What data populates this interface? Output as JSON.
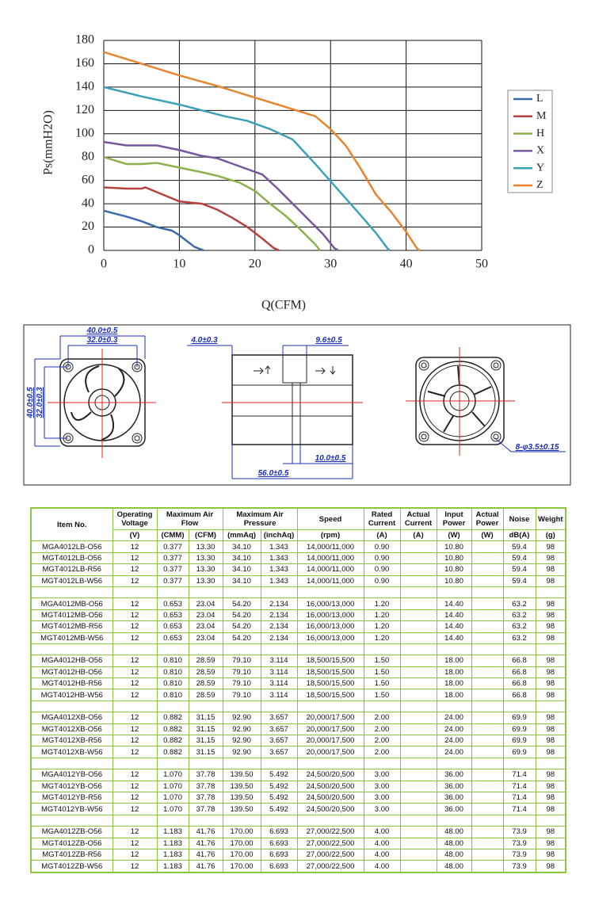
{
  "chart_data": {
    "type": "line",
    "xlabel": "Q(CFM)",
    "ylabel": "Ps(mmH2O)",
    "xlim": [
      0,
      50
    ],
    "ylim": [
      0,
      180
    ],
    "xticks": [
      0,
      10,
      20,
      30,
      40,
      50
    ],
    "yticks": [
      0,
      20,
      40,
      60,
      80,
      100,
      120,
      140,
      160,
      180
    ],
    "grid": true,
    "legend": "right",
    "series": [
      {
        "name": "L",
        "color": "#3b6aa9",
        "x": [
          0,
          3,
          5,
          7,
          9,
          10,
          11,
          12,
          13.2
        ],
        "values": [
          34,
          29,
          25,
          20,
          17,
          13,
          8,
          3,
          0
        ]
      },
      {
        "name": "M",
        "color": "#b7423d",
        "x": [
          0,
          3,
          5,
          5.5,
          7,
          10,
          13,
          15,
          17,
          19,
          21,
          22.5,
          23.2
        ],
        "values": [
          54,
          53,
          53,
          54,
          50,
          42,
          40,
          35,
          28,
          20,
          10,
          2,
          0
        ]
      },
      {
        "name": "H",
        "color": "#8cb04b",
        "x": [
          0,
          3,
          5,
          7,
          10,
          13,
          15,
          18,
          20,
          22,
          24,
          26,
          28,
          28.6
        ],
        "values": [
          80,
          74,
          74,
          75,
          71,
          67,
          64,
          58,
          51,
          40,
          30,
          18,
          5,
          0
        ]
      },
      {
        "name": "X",
        "color": "#7756a0",
        "x": [
          0,
          3,
          7,
          10,
          13,
          15,
          18,
          21,
          23,
          25,
          27,
          29,
          30.5,
          31
        ],
        "values": [
          93,
          90,
          90,
          86,
          81,
          79,
          72,
          65,
          53,
          40,
          27,
          14,
          2,
          0
        ]
      },
      {
        "name": "Y",
        "color": "#3ba1b9",
        "x": [
          0,
          5,
          10,
          13,
          16,
          19,
          22,
          25,
          28,
          31,
          34,
          36,
          37.5,
          37.8
        ],
        "values": [
          140,
          132,
          125,
          120,
          115,
          111,
          104,
          95,
          74,
          52,
          30,
          15,
          2,
          0
        ]
      },
      {
        "name": "Z",
        "color": "#e8842f",
        "x": [
          0,
          5,
          10,
          15,
          20,
          25,
          28,
          30,
          32,
          34,
          36,
          38,
          40,
          41.4,
          41.8
        ],
        "values": [
          170,
          160,
          150,
          141,
          131,
          121,
          115,
          104,
          90,
          70,
          48,
          33,
          16,
          2,
          0
        ]
      }
    ]
  },
  "drawing": {
    "dimensions": [
      "40.0±0.5",
      "32.0±0.3",
      "40.0±0.5",
      "32.0±0.3",
      "4.0±0.3",
      "9.6±0.5",
      "10.0±0.5",
      "56.0±0.5",
      "8-φ3.5±0.15"
    ]
  },
  "table": {
    "headers": [
      "Item No.",
      "Operating Voltage",
      "Maximum Air Flow",
      "Maximum Air Pressure",
      "Speed",
      "Rated Current",
      "Actual Current",
      "Input Power",
      "Actual Power",
      "Noise",
      "Weight"
    ],
    "units": [
      "(V)",
      "(CMM)",
      "(CFM)",
      "(mmAq)",
      "(inchAq)",
      "(rpm)",
      "(A)",
      "(A)",
      "(W)",
      "(W)",
      "dB(A)",
      "(g)"
    ],
    "groups": [
      [
        [
          "MGA4012LB-O56",
          "12",
          "0.377",
          "13.30",
          "34.10",
          "1.343",
          "14,000/11,000",
          "0.90",
          "10.80",
          "59.4",
          "98"
        ],
        [
          "MGT4012LB-O56",
          "12",
          "0.377",
          "13.30",
          "34.10",
          "1.343",
          "14,000/11,000",
          "0.90",
          "10.80",
          "59.4",
          "98"
        ],
        [
          "MGT4012LB-R56",
          "12",
          "0.377",
          "13.30",
          "34.10",
          "1.343",
          "14,000/11,000",
          "0.90",
          "10.80",
          "59.4",
          "98"
        ],
        [
          "MGT4012LB-W56",
          "12",
          "0.377",
          "13.30",
          "34.10",
          "1.343",
          "14,000/11,000",
          "0.90",
          "10.80",
          "59.4",
          "98"
        ]
      ],
      [
        [
          "MGA4012MB-O56",
          "12",
          "0.653",
          "23.04",
          "54.20",
          "2.134",
          "16,000/13,000",
          "1.20",
          "14.40",
          "63.2",
          "98"
        ],
        [
          "MGT4012MB-O56",
          "12",
          "0.653",
          "23.04",
          "54.20",
          "2.134",
          "16,000/13,000",
          "1.20",
          "14.40",
          "63.2",
          "98"
        ],
        [
          "MGT4012MB-R56",
          "12",
          "0.653",
          "23.04",
          "54.20",
          "2.134",
          "16,000/13,000",
          "1.20",
          "14.40",
          "63.2",
          "98"
        ],
        [
          "MGT4012MB-W56",
          "12",
          "0.653",
          "23.04",
          "54.20",
          "2.134",
          "16,000/13,000",
          "1.20",
          "14.40",
          "63.2",
          "98"
        ]
      ],
      [
        [
          "MGA4012HB-O56",
          "12",
          "0.810",
          "28.59",
          "79.10",
          "3.114",
          "18,500/15,500",
          "1.50",
          "18.00",
          "66.8",
          "98"
        ],
        [
          "MGT4012HB-O56",
          "12",
          "0.810",
          "28.59",
          "79.10",
          "3.114",
          "18,500/15,500",
          "1.50",
          "18.00",
          "66.8",
          "98"
        ],
        [
          "MGT4012HB-R56",
          "12",
          "0.810",
          "28.59",
          "79.10",
          "3.114",
          "18,500/15,500",
          "1.50",
          "18.00",
          "66.8",
          "98"
        ],
        [
          "MGT4012HB-W56",
          "12",
          "0.810",
          "28.59",
          "79.10",
          "3.114",
          "18,500/15,500",
          "1.50",
          "18.00",
          "66.8",
          "98"
        ]
      ],
      [
        [
          "MGA4012XB-O56",
          "12",
          "0.882",
          "31.15",
          "92.90",
          "3.657",
          "20,000/17,500",
          "2.00",
          "24.00",
          "69.9",
          "98"
        ],
        [
          "MGT4012XB-O56",
          "12",
          "0.882",
          "31.15",
          "92.90",
          "3.657",
          "20,000/17,500",
          "2.00",
          "24.00",
          "69.9",
          "98"
        ],
        [
          "MGT4012XB-R56",
          "12",
          "0.882",
          "31.15",
          "92.90",
          "3.657",
          "20,000/17,500",
          "2.00",
          "24.00",
          "69.9",
          "98"
        ],
        [
          "MGT4012XB-W56",
          "12",
          "0.882",
          "31.15",
          "92.90",
          "3.657",
          "20,000/17,500",
          "2.00",
          "24.00",
          "69.9",
          "98"
        ]
      ],
      [
        [
          "MGA4012YB-O56",
          "12",
          "1.070",
          "37.78",
          "139.50",
          "5.492",
          "24,500/20,500",
          "3.00",
          "36.00",
          "71.4",
          "98"
        ],
        [
          "MGT4012YB-O56",
          "12",
          "1.070",
          "37.78",
          "139.50",
          "5.492",
          "24,500/20,500",
          "3.00",
          "36.00",
          "71.4",
          "98"
        ],
        [
          "MGT4012YB-R56",
          "12",
          "1.070",
          "37.78",
          "139.50",
          "5.492",
          "24,500/20,500",
          "3.00",
          "36.00",
          "71.4",
          "98"
        ],
        [
          "MGT4012YB-W56",
          "12",
          "1.070",
          "37.78",
          "139.50",
          "5.492",
          "24,500/20,500",
          "3.00",
          "36.00",
          "71.4",
          "98"
        ]
      ],
      [
        [
          "MGA4012ZB-O56",
          "12",
          "1.183",
          "41.76",
          "170.00",
          "6.693",
          "27,000/22,500",
          "4.00",
          "48.00",
          "73.9",
          "98"
        ],
        [
          "MGT4012ZB-O56",
          "12",
          "1.183",
          "41.76",
          "170.00",
          "6.693",
          "27,000/22,500",
          "4.00",
          "48.00",
          "73.9",
          "98"
        ],
        [
          "MGT4012ZB-R56",
          "12",
          "1.183",
          "41.76",
          "170.00",
          "6.693",
          "27,000/22,500",
          "4.00",
          "48.00",
          "73.9",
          "98"
        ],
        [
          "MGT4012ZB-W56",
          "12",
          "1.183",
          "41.76",
          "170.00",
          "6.693",
          "27,000/22,500",
          "4.00",
          "48.00",
          "73.9",
          "98"
        ]
      ]
    ]
  }
}
